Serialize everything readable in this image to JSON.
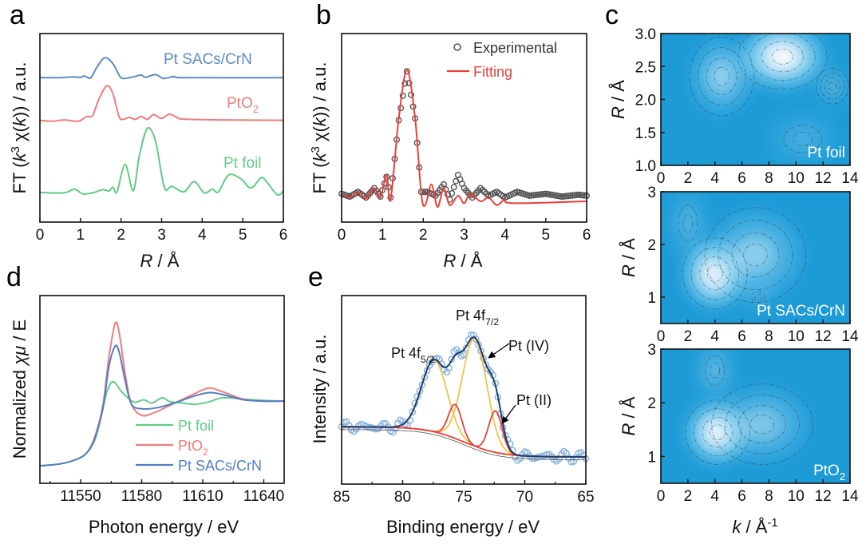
{
  "panel_labels": [
    "a",
    "b",
    "c",
    "d",
    "e"
  ],
  "chart_data": [
    {
      "panel": "a",
      "type": "line",
      "xlabel_parts": [
        "R",
        " / Å"
      ],
      "ylabel_parts": [
        "FT (",
        "k",
        "3",
        " χ(",
        "k",
        ")) / a.u."
      ],
      "xlim": [
        0,
        6
      ],
      "ylim": [
        0,
        10
      ],
      "xticks": [
        0,
        1,
        2,
        3,
        4,
        5,
        6
      ],
      "series": [
        {
          "name_parts": [
            "Pt SACs/CrN"
          ],
          "color": "#5b8cc8",
          "points": [
            [
              0,
              7.66
            ],
            [
              0.5,
              7.66
            ],
            [
              0.8,
              7.7
            ],
            [
              1.0,
              7.68
            ],
            [
              1.1,
              7.75
            ],
            [
              1.25,
              7.65
            ],
            [
              1.4,
              8.2
            ],
            [
              1.6,
              8.72
            ],
            [
              1.8,
              8.4
            ],
            [
              1.95,
              7.8
            ],
            [
              2.05,
              7.62
            ],
            [
              2.3,
              7.7
            ],
            [
              2.5,
              7.8
            ],
            [
              2.6,
              7.68
            ],
            [
              2.85,
              7.82
            ],
            [
              3.05,
              7.62
            ],
            [
              3.3,
              7.72
            ],
            [
              3.6,
              7.66
            ],
            [
              6,
              7.66
            ]
          ]
        },
        {
          "name_parts": [
            "PtO",
            "2"
          ],
          "color": "#f07c7c",
          "points": [
            [
              0,
              5.4
            ],
            [
              0.3,
              5.35
            ],
            [
              0.6,
              5.42
            ],
            [
              0.95,
              5.35
            ],
            [
              1.15,
              5.6
            ],
            [
              1.3,
              5.65
            ],
            [
              1.45,
              6.5
            ],
            [
              1.65,
              7.23
            ],
            [
              1.8,
              6.8
            ],
            [
              1.95,
              5.6
            ],
            [
              2.05,
              5.45
            ],
            [
              2.2,
              5.55
            ],
            [
              2.35,
              5.45
            ],
            [
              2.5,
              5.6
            ],
            [
              2.65,
              5.45
            ],
            [
              2.8,
              5.7
            ],
            [
              3.0,
              5.5
            ],
            [
              3.2,
              5.72
            ],
            [
              3.45,
              5.48
            ],
            [
              3.7,
              5.45
            ],
            [
              4.5,
              5.42
            ],
            [
              6,
              5.4
            ]
          ]
        },
        {
          "name_parts": [
            "Pt foil"
          ],
          "color": "#62cc86",
          "points": [
            [
              0,
              1.57
            ],
            [
              0.6,
              1.55
            ],
            [
              0.85,
              1.75
            ],
            [
              1.05,
              1.5
            ],
            [
              1.3,
              1.55
            ],
            [
              1.55,
              1.72
            ],
            [
              1.7,
              1.65
            ],
            [
              1.8,
              1.85
            ],
            [
              1.9,
              1.6
            ],
            [
              2.1,
              3.06
            ],
            [
              2.3,
              1.66
            ],
            [
              2.45,
              3.5
            ],
            [
              2.65,
              4.98
            ],
            [
              2.85,
              4.3
            ],
            [
              3.0,
              2.5
            ],
            [
              3.1,
              1.7
            ],
            [
              3.25,
              1.9
            ],
            [
              3.55,
              1.6
            ],
            [
              3.8,
              2.15
            ],
            [
              4.05,
              1.55
            ],
            [
              4.25,
              1.75
            ],
            [
              4.4,
              1.6
            ],
            [
              4.65,
              2.5
            ],
            [
              4.95,
              2.3
            ],
            [
              5.2,
              1.8
            ],
            [
              5.45,
              2.35
            ],
            [
              5.6,
              2.1
            ],
            [
              5.85,
              1.45
            ],
            [
              6,
              1.65
            ]
          ]
        }
      ]
    },
    {
      "panel": "b",
      "type": "line",
      "xlabel_parts": [
        "R",
        " / Å"
      ],
      "ylabel_parts": [
        "FT (",
        "k",
        "3",
        " χ(",
        "k",
        ")) / a.u."
      ],
      "xlim": [
        0,
        6
      ],
      "ylim": [
        0,
        10
      ],
      "xticks": [
        0,
        1,
        2,
        3,
        4,
        5,
        6
      ],
      "legend": "top-right",
      "series": [
        {
          "name": "Experimental",
          "style": "circles",
          "color": "#555555",
          "points": [
            [
              0,
              1.5
            ],
            [
              0.2,
              1.35
            ],
            [
              0.4,
              1.6
            ],
            [
              0.6,
              1.3
            ],
            [
              0.8,
              1.8
            ],
            [
              0.95,
              1.35
            ],
            [
              1.1,
              2.4
            ],
            [
              1.2,
              1.3
            ],
            [
              1.4,
              5.4
            ],
            [
              1.6,
              8.0
            ],
            [
              1.8,
              5.5
            ],
            [
              1.95,
              1.6
            ],
            [
              2.1,
              1.6
            ],
            [
              2.3,
              1.4
            ],
            [
              2.5,
              2.0
            ],
            [
              2.65,
              1.2
            ],
            [
              2.85,
              2.5
            ],
            [
              3.0,
              1.8
            ],
            [
              3.2,
              1.3
            ],
            [
              3.4,
              1.8
            ],
            [
              3.6,
              1.4
            ],
            [
              3.8,
              1.6
            ],
            [
              4.0,
              1.3
            ],
            [
              4.3,
              1.6
            ],
            [
              4.6,
              1.4
            ],
            [
              5.0,
              1.5
            ],
            [
              5.4,
              1.35
            ],
            [
              5.8,
              1.45
            ],
            [
              6,
              1.4
            ]
          ]
        },
        {
          "name": "Fitting",
          "style": "line",
          "color": "#e8413c",
          "points": [
            [
              0,
              1.5
            ],
            [
              0.2,
              1.3
            ],
            [
              0.4,
              1.6
            ],
            [
              0.6,
              1.25
            ],
            [
              0.8,
              1.8
            ],
            [
              0.95,
              1.3
            ],
            [
              1.1,
              2.5
            ],
            [
              1.2,
              1.2
            ],
            [
              1.4,
              5.5
            ],
            [
              1.6,
              8.05
            ],
            [
              1.8,
              5.5
            ],
            [
              1.95,
              1.5
            ],
            [
              2.05,
              0.9
            ],
            [
              2.2,
              2.0
            ],
            [
              2.35,
              0.8
            ],
            [
              2.5,
              1.8
            ],
            [
              2.65,
              0.9
            ],
            [
              2.85,
              1.4
            ],
            [
              3.0,
              1.0
            ],
            [
              3.15,
              1.5
            ],
            [
              3.4,
              1.1
            ],
            [
              3.6,
              1.3
            ],
            [
              3.8,
              0.9
            ],
            [
              4.0,
              1.2
            ],
            [
              4.2,
              1.0
            ],
            [
              6,
              1.1
            ]
          ]
        }
      ]
    },
    {
      "panel": "c",
      "type": "heatmap",
      "xlabel_parts": [
        "k",
        " / Å",
        "-1"
      ],
      "ylabel_parts": [
        "R",
        " / Å"
      ],
      "xlim": [
        0,
        14
      ],
      "xticks": [
        0,
        2,
        4,
        6,
        8,
        10,
        12,
        14
      ],
      "maps": [
        {
          "name_parts": [
            "Pt foil"
          ],
          "ylim": [
            1.0,
            3.0
          ],
          "yticks": [
            "1.0",
            "1.5",
            "2.0",
            "2.5",
            "3.0"
          ],
          "maxima": [
            {
              "k": 9,
              "R": 2.65,
              "i": 1,
              "sk": 2.2,
              "sR": 0.33
            },
            {
              "k": 4.5,
              "R": 2.35,
              "i": 0.45,
              "sk": 1.6,
              "sR": 0.4
            },
            {
              "k": 12.7,
              "R": 2.2,
              "i": 0.3,
              "sk": 0.8,
              "sR": 0.18
            },
            {
              "k": 10.5,
              "R": 1.4,
              "i": 0.15,
              "sk": 2,
              "sR": 0.3
            }
          ]
        },
        {
          "name_parts": [
            "Pt SACs/CrN"
          ],
          "ylim": [
            0.5,
            3.0
          ],
          "yticks": [
            "1",
            "2",
            "3"
          ],
          "maxima": [
            {
              "k": 4,
              "R": 1.45,
              "i": 1,
              "sk": 1.6,
              "sR": 0.45
            },
            {
              "k": 7,
              "R": 1.8,
              "i": 0.4,
              "sk": 2.5,
              "sR": 0.6
            },
            {
              "k": 2,
              "R": 2.4,
              "i": 0.2,
              "sk": 1,
              "sR": 0.5
            },
            {
              "k": 7.2,
              "R": 1.0,
              "i": 0.2,
              "sk": 0.7,
              "sR": 0.15
            }
          ]
        },
        {
          "name_parts": [
            "PtO",
            "2"
          ],
          "ylim": [
            0.5,
            3.0
          ],
          "yticks": [
            "1",
            "2",
            "3"
          ],
          "maxima": [
            {
              "k": 4.2,
              "R": 1.45,
              "i": 1,
              "sk": 1.6,
              "sR": 0.4
            },
            {
              "k": 7.5,
              "R": 1.6,
              "i": 0.35,
              "sk": 2.5,
              "sR": 0.5
            },
            {
              "k": 4,
              "R": 2.6,
              "i": 0.25,
              "sk": 1,
              "sR": 0.4
            }
          ]
        }
      ]
    },
    {
      "panel": "d",
      "type": "line",
      "xlabel_parts": [
        "Photon energy / eV"
      ],
      "ylabel_parts": [
        "Normalized ",
        "χμ",
        " / E"
      ],
      "xlim": [
        11530,
        11650
      ],
      "ylim": [
        -0.27,
        2.63
      ],
      "xticks": [
        11550,
        11580,
        11610,
        11640
      ],
      "legend": "bottom-right",
      "series": [
        {
          "name_parts": [
            "Pt foil"
          ],
          "color": "#62cc86",
          "points": [
            [
              11530,
              0
            ],
            [
              11540,
              0.03
            ],
            [
              11548,
              0.1
            ],
            [
              11553,
              0.2
            ],
            [
              11557,
              0.4
            ],
            [
              11560,
              0.75
            ],
            [
              11563,
              1.15
            ],
            [
              11566,
              1.3
            ],
            [
              11570,
              1.15
            ],
            [
              11574,
              1.03
            ],
            [
              11577,
              0.98
            ],
            [
              11581,
              1.02
            ],
            [
              11585,
              0.97
            ],
            [
              11590,
              1.05
            ],
            [
              11594,
              0.99
            ],
            [
              11600,
              0.97
            ],
            [
              11606,
              0.95
            ],
            [
              11612,
              0.98
            ],
            [
              11620,
              1.05
            ],
            [
              11630,
              1.03
            ],
            [
              11640,
              1.01
            ],
            [
              11650,
              1.0
            ]
          ]
        },
        {
          "name_parts": [
            "PtO",
            "2"
          ],
          "color": "#f07c7c",
          "points": [
            [
              11530,
              0
            ],
            [
              11540,
              0.03
            ],
            [
              11548,
              0.1
            ],
            [
              11553,
              0.2
            ],
            [
              11557,
              0.45
            ],
            [
              11561,
              0.95
            ],
            [
              11564,
              1.7
            ],
            [
              11567,
              2.2
            ],
            [
              11569,
              2.05
            ],
            [
              11572,
              1.4
            ],
            [
              11575,
              0.95
            ],
            [
              11580,
              0.78
            ],
            [
              11586,
              0.82
            ],
            [
              11595,
              0.95
            ],
            [
              11605,
              1.1
            ],
            [
              11613,
              1.2
            ],
            [
              11620,
              1.14
            ],
            [
              11630,
              1.03
            ],
            [
              11640,
              1.0
            ],
            [
              11650,
              1.0
            ]
          ]
        },
        {
          "name_parts": [
            "Pt SACs/CrN"
          ],
          "color": "#4f7fc4",
          "points": [
            [
              11530,
              0
            ],
            [
              11540,
              0.03
            ],
            [
              11548,
              0.1
            ],
            [
              11553,
              0.2
            ],
            [
              11557,
              0.43
            ],
            [
              11561,
              0.9
            ],
            [
              11564,
              1.55
            ],
            [
              11567,
              1.85
            ],
            [
              11569,
              1.75
            ],
            [
              11572,
              1.3
            ],
            [
              11575,
              0.95
            ],
            [
              11580,
              0.88
            ],
            [
              11588,
              0.9
            ],
            [
              11597,
              0.98
            ],
            [
              11605,
              1.07
            ],
            [
              11613,
              1.13
            ],
            [
              11620,
              1.1
            ],
            [
              11630,
              1.02
            ],
            [
              11640,
              1.0
            ],
            [
              11650,
              1.0
            ]
          ]
        }
      ]
    },
    {
      "panel": "e",
      "type": "line",
      "xlabel_parts": [
        "Binding energy / eV"
      ],
      "ylabel_parts": [
        "Intensity / a.u."
      ],
      "xlim": [
        85,
        65
      ],
      "ylim": [
        0,
        10
      ],
      "xticks": [
        85,
        80,
        75,
        70,
        65
      ],
      "background": {
        "low": 1.44,
        "step": 1.6,
        "center": 75,
        "width": 1.5
      },
      "components": [
        {
          "name": "Pt(IV) 4f7/2",
          "center": 74.1,
          "height": 5.7,
          "sigma": 1.0,
          "color": "#f5c342"
        },
        {
          "name": "Pt(IV) 4f5/2",
          "center": 77.4,
          "height": 3.8,
          "sigma": 1.05,
          "color": "#f5c342"
        },
        {
          "name": "Pt(II) 4f7/2",
          "center": 72.4,
          "height": 2.2,
          "sigma": 0.55,
          "color": "#e8413c"
        },
        {
          "name": "Pt(II) 4f5/2",
          "center": 75.7,
          "height": 1.8,
          "sigma": 0.55,
          "color": "#e8413c"
        }
      ],
      "envelope_color": "#1d3d6b",
      "points_color": "#8ab4e0",
      "annotations": {
        "f52": [
          "Pt 4f",
          "5/2"
        ],
        "f72": [
          "Pt 4f",
          "7/2"
        ],
        "pt4": "Pt (IV)",
        "pt2": "Pt (II)"
      }
    }
  ]
}
